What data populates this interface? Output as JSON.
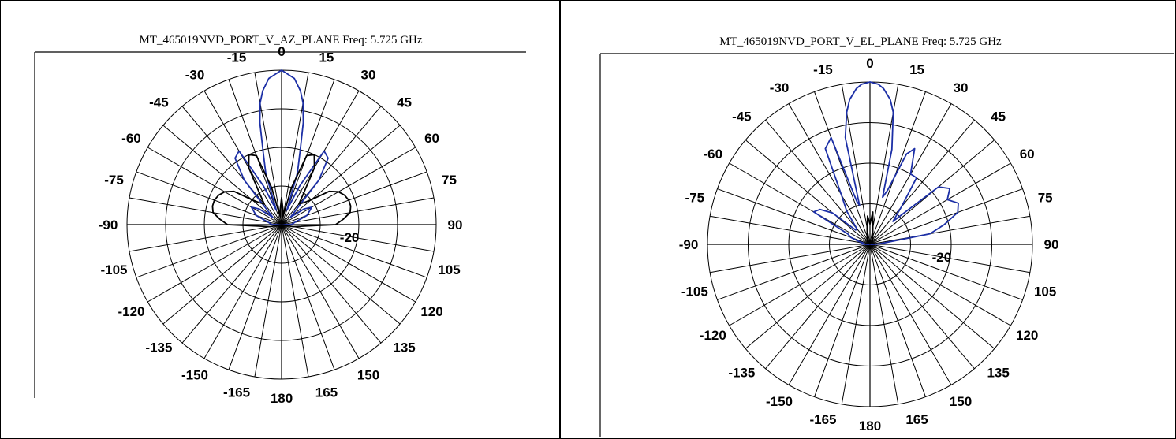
{
  "colors": {
    "series_blue": "#1c2fa6",
    "series_black": "#000000",
    "axis": "#000000"
  },
  "chart_data": [
    {
      "type": "polar",
      "title": "MT_465019NVD_PORT_V_AZ_PLANE  Freq:  5.725 GHz",
      "angle_ticks": [
        "0",
        "15",
        "30",
        "45",
        "60",
        "75",
        "90",
        "105",
        "120",
        "135",
        "150",
        "165",
        "180",
        "-165",
        "-150",
        "-135",
        "-120",
        "-105",
        "-90",
        "-75",
        "-60",
        "-45",
        "-30",
        "-15"
      ],
      "angle_tick_values": [
        0,
        15,
        30,
        45,
        60,
        75,
        90,
        105,
        120,
        135,
        150,
        165,
        180,
        -165,
        -150,
        -135,
        -120,
        -105,
        -90,
        -75,
        -60,
        -45,
        -30,
        -15
      ],
      "radial_label": "-20",
      "radial_range_db": [
        -40,
        0
      ],
      "ring_levels_db": [
        -30,
        -20,
        -10,
        0
      ],
      "series": [
        {
          "color": "blue",
          "angles_deg": [
            -180,
            -165,
            -150,
            -135,
            -120,
            -105,
            -90,
            -80,
            -70,
            -60,
            -55,
            -50,
            -45,
            -40,
            -35,
            -30,
            -25,
            -20,
            -17,
            -14,
            -12,
            -10,
            -8,
            -5,
            0,
            5,
            8,
            10,
            12,
            14,
            17,
            20,
            25,
            30,
            35,
            40,
            45,
            50,
            55,
            60,
            70,
            80,
            90,
            105,
            120,
            135,
            150,
            165,
            180
          ],
          "values_db": [
            -40,
            -40,
            -40,
            -40,
            -40,
            -40,
            -37.5,
            -36.5,
            -33,
            -31,
            -33,
            -37,
            -35,
            -25,
            -19,
            -18,
            -29,
            -36,
            -26,
            -20,
            -13,
            -8,
            -5,
            -2,
            0,
            -2,
            -5,
            -8,
            -13,
            -20,
            -26,
            -36,
            -29,
            -18,
            -19,
            -25,
            -35,
            -37,
            -33,
            -31,
            -33,
            -36.5,
            -37.5,
            -40,
            -40,
            -40,
            -40,
            -40,
            -40
          ]
        },
        {
          "color": "black",
          "angles_deg": [
            -180,
            -150,
            -120,
            -100,
            -90,
            -85,
            -80,
            -75,
            -70,
            -65,
            -60,
            -55,
            -50,
            -45,
            -40,
            -35,
            -30,
            -25,
            -20,
            -15,
            -10,
            -5,
            0,
            5,
            10,
            15,
            20,
            25,
            30,
            35,
            40,
            45,
            50,
            55,
            60,
            65,
            70,
            75,
            80,
            85,
            90,
            100,
            120,
            150,
            180
          ],
          "values_db": [
            -40,
            -40,
            -40,
            -37,
            -26,
            -24,
            -22,
            -21.5,
            -21.5,
            -22,
            -23,
            -25,
            -30,
            -32,
            -33,
            -30,
            -23,
            -20,
            -21,
            -30,
            -38,
            -36,
            -33,
            -36,
            -38,
            -30,
            -21,
            -20,
            -23,
            -30,
            -33,
            -32,
            -30,
            -25,
            -23,
            -22,
            -21.5,
            -21.5,
            -22,
            -24,
            -26,
            -37,
            -40,
            -40,
            -40
          ]
        }
      ]
    },
    {
      "type": "polar",
      "title": "MT_465019NVD_PORT_V_EL_PLANE  Freq:  5.725 GHz",
      "angle_ticks": [
        "0",
        "15",
        "30",
        "45",
        "60",
        "75",
        "90",
        "105",
        "120",
        "135",
        "150",
        "165",
        "180",
        "-165",
        "-150",
        "-135",
        "-120",
        "-105",
        "-90",
        "-75",
        "-60",
        "-45",
        "-30",
        "-15"
      ],
      "angle_tick_values": [
        0,
        15,
        30,
        45,
        60,
        75,
        90,
        105,
        120,
        135,
        150,
        165,
        180,
        -165,
        -150,
        -135,
        -120,
        -105,
        -90,
        -75,
        -60,
        -45,
        -30,
        -15
      ],
      "radial_label": "-20",
      "radial_range_db": [
        -40,
        0
      ],
      "ring_levels_db": [
        -30,
        -20,
        -10,
        0
      ],
      "series": [
        {
          "color": "blue",
          "angles_deg": [
            -180,
            -150,
            -120,
            -100,
            -92,
            -88,
            -85,
            -80,
            -75,
            -70,
            -65,
            -60,
            -55,
            -50,
            -45,
            -40,
            -35,
            -30,
            -25,
            -20,
            -17,
            -15,
            -13,
            -10,
            -8,
            -5,
            -3,
            0,
            3,
            5,
            8,
            10,
            13,
            15,
            18,
            22,
            25,
            30,
            35,
            40,
            45,
            50,
            55,
            60,
            65,
            70,
            75,
            80,
            85,
            88,
            92,
            100,
            120,
            150,
            180
          ],
          "values_db": [
            -40,
            -40,
            -40,
            -40,
            -39.5,
            -38,
            -38,
            -38.5,
            -37,
            -35,
            -34,
            -24,
            -25,
            -28,
            -35,
            -35,
            -30,
            -26,
            -14,
            -12,
            -29,
            -30,
            -13,
            -7,
            -4,
            -1.5,
            -0.5,
            0,
            -0.5,
            -1.5,
            -4,
            -7,
            -16,
            -28,
            -26,
            -16,
            -14,
            -20,
            -20,
            -28,
            -32,
            -18,
            -16,
            -18,
            -16,
            -17,
            -21,
            -25,
            -37,
            -38,
            -39.5,
            -40,
            -40,
            -40,
            -40
          ]
        },
        {
          "color": "black",
          "angles_deg": [
            -180,
            -90,
            -40,
            -20,
            -10,
            -5,
            0,
            5,
            10,
            20,
            40,
            90,
            180
          ],
          "values_db": [
            -40,
            -40,
            -39,
            -38,
            -36,
            -33,
            -35,
            -32,
            -36,
            -38,
            -39,
            -40,
            -40
          ]
        }
      ]
    }
  ]
}
